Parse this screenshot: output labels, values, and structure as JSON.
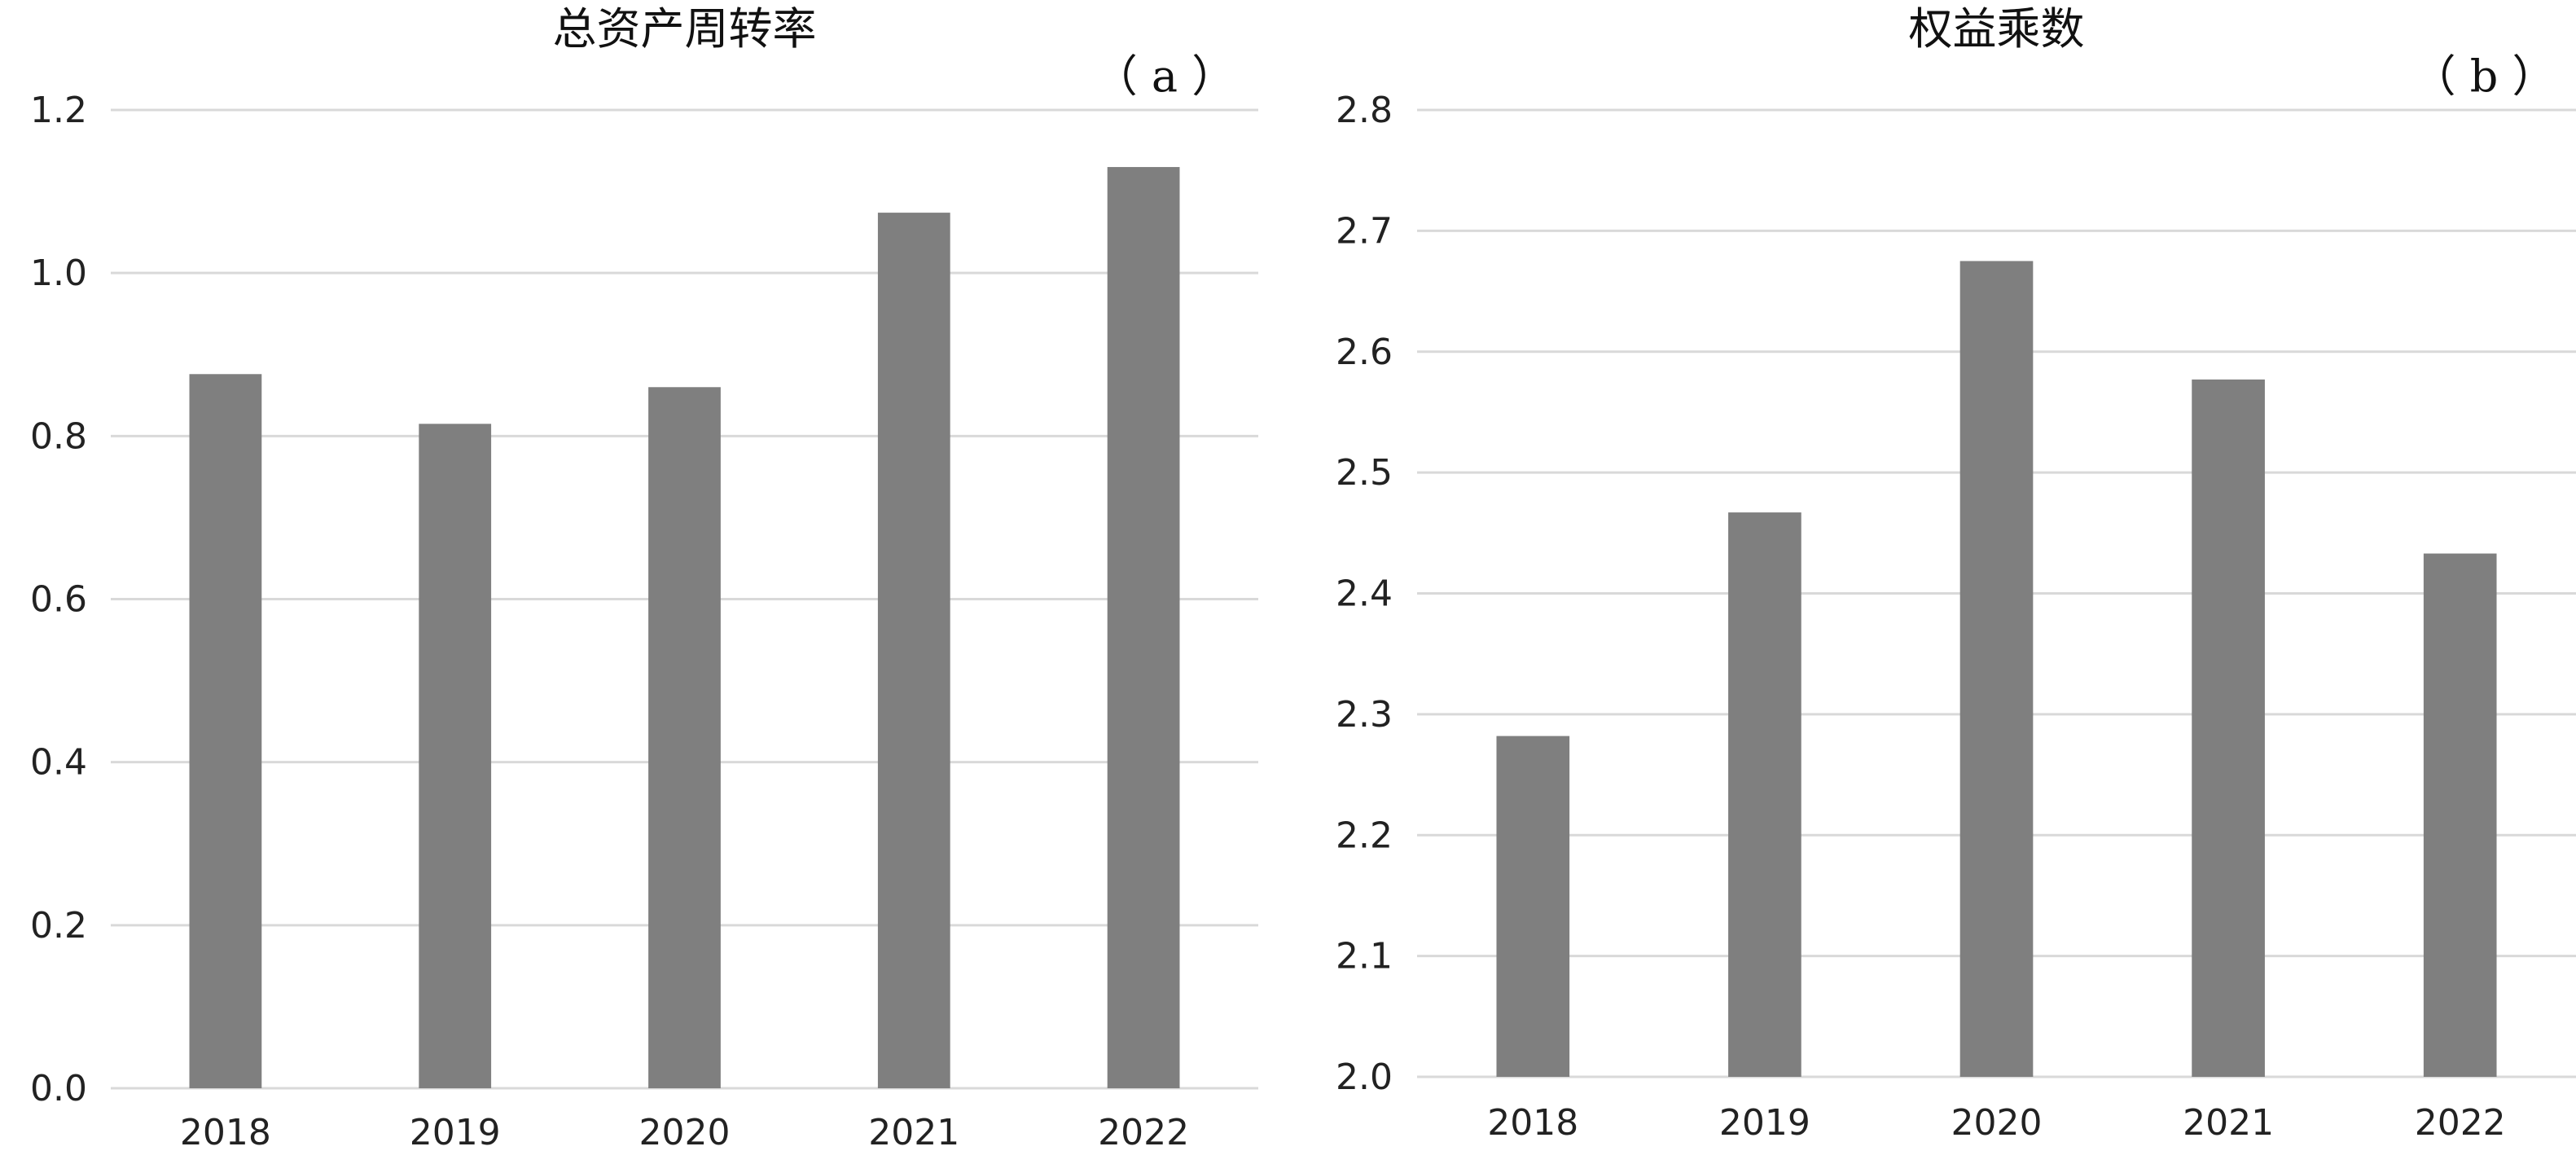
{
  "chart_data": [
    {
      "id": "a",
      "type": "bar",
      "title": "总资产周转率",
      "panel_label": "（ a ）",
      "categories": [
        "2018",
        "2019",
        "2020",
        "2021",
        "2022"
      ],
      "values": [
        0.876,
        0.815,
        0.86,
        1.074,
        1.13
      ],
      "ylim": [
        0.0,
        1.2
      ],
      "yticks": [
        "0.0",
        "0.2",
        "0.4",
        "0.6",
        "0.8",
        "1.0",
        "1.2"
      ],
      "xlabel": "",
      "ylabel": "",
      "grid": true,
      "legend": "none",
      "bar_color": "#7f7f7f"
    },
    {
      "id": "b",
      "type": "bar",
      "title": "权益乘数",
      "panel_label": "（ b ）",
      "categories": [
        "2018",
        "2019",
        "2020",
        "2021",
        "2022"
      ],
      "values": [
        2.282,
        2.467,
        2.675,
        2.577,
        2.433
      ],
      "ylim": [
        2.0,
        2.8
      ],
      "yticks": [
        "2.0",
        "2.1",
        "2.2",
        "2.3",
        "2.4",
        "2.5",
        "2.6",
        "2.7",
        "2.8"
      ],
      "xlabel": "",
      "ylabel": "",
      "grid": true,
      "legend": "none",
      "bar_color": "#7f7f7f"
    }
  ]
}
